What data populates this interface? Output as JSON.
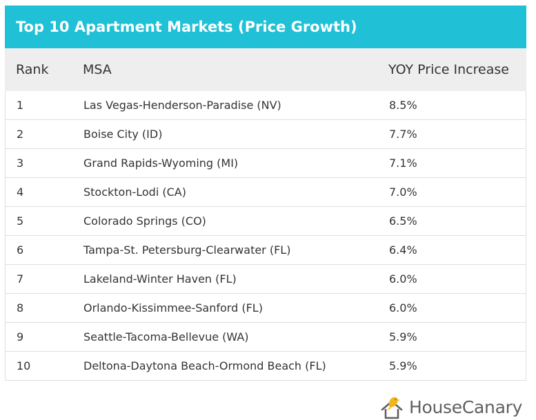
{
  "chart_data": {
    "type": "table",
    "title": "Top 10 Apartment Markets (Price Growth)",
    "columns": [
      "Rank",
      "MSA",
      "YOY Price Increase"
    ],
    "rows": [
      {
        "rank": "1",
        "msa": "Las Vegas-Henderson-Paradise (NV)",
        "yoy": "8.5%"
      },
      {
        "rank": "2",
        "msa": "Boise City (ID)",
        "yoy": "7.7%"
      },
      {
        "rank": "3",
        "msa": "Grand Rapids-Wyoming (MI)",
        "yoy": "7.1%"
      },
      {
        "rank": "4",
        "msa": "Stockton-Lodi (CA)",
        "yoy": "7.0%"
      },
      {
        "rank": "5",
        "msa": "Colorado Springs (CO)",
        "yoy": "6.5%"
      },
      {
        "rank": "6",
        "msa": "Tampa-St. Petersburg-Clearwater (FL)",
        "yoy": "6.4%"
      },
      {
        "rank": "7",
        "msa": "Lakeland-Winter Haven (FL)",
        "yoy": "6.0%"
      },
      {
        "rank": "8",
        "msa": "Orlando-Kissimmee-Sanford (FL)",
        "yoy": "6.0%"
      },
      {
        "rank": "9",
        "msa": "Seattle-Tacoma-Bellevue (WA)",
        "yoy": "5.9%"
      },
      {
        "rank": "10",
        "msa": "Deltona-Daytona Beach-Ormond Beach (FL)",
        "yoy": "5.9%"
      }
    ]
  },
  "brand": {
    "name": "HouseCanary",
    "logo_icon": "canary-on-house-icon",
    "bird_color": "#f2b51c",
    "house_color": "#5f5f5f"
  },
  "colors": {
    "title_bar": "#20c0d6",
    "header_bg": "#eeeeee",
    "text": "#333333"
  }
}
